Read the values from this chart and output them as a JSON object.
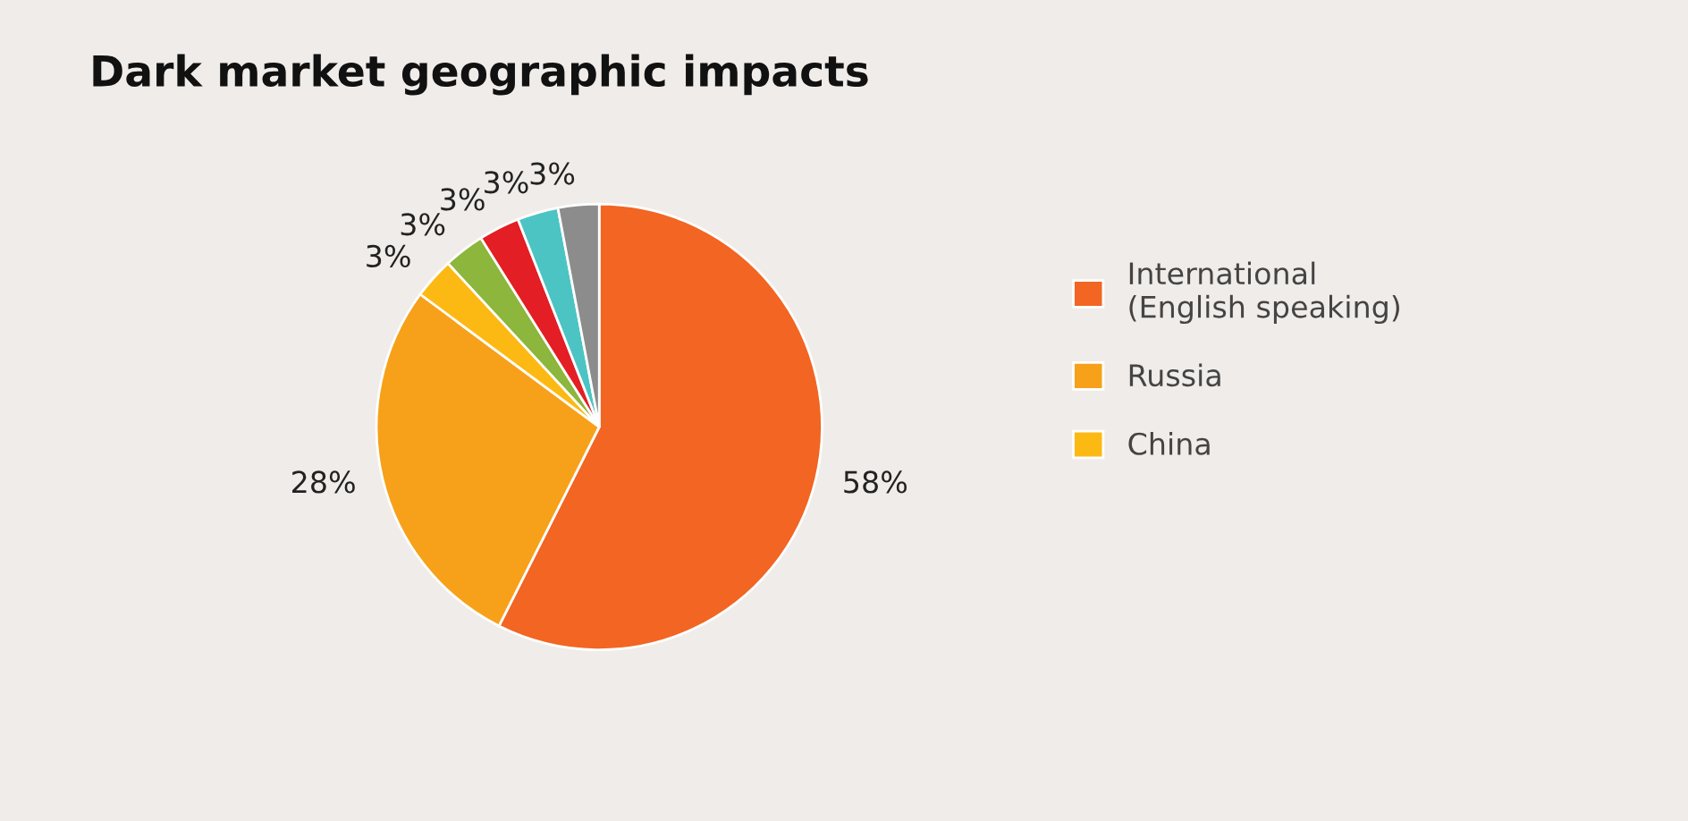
{
  "chart_data": {
    "type": "pie",
    "title": "Dark market geographic impacts",
    "categories": [
      "International\n(English speaking)",
      "Russia",
      "China",
      null,
      null,
      null,
      null
    ],
    "values": [
      58,
      28,
      3,
      3,
      3,
      3,
      3
    ],
    "value_labels": [
      "58%",
      "28%",
      "3%",
      "3%",
      "3%",
      "3%",
      "3%"
    ],
    "colors": [
      "#f26522",
      "#f7a11a",
      "#fdb913",
      "#8cb63c",
      "#e31e24",
      "#4cc4c4",
      "#8c8c8c"
    ],
    "legend": "right"
  }
}
